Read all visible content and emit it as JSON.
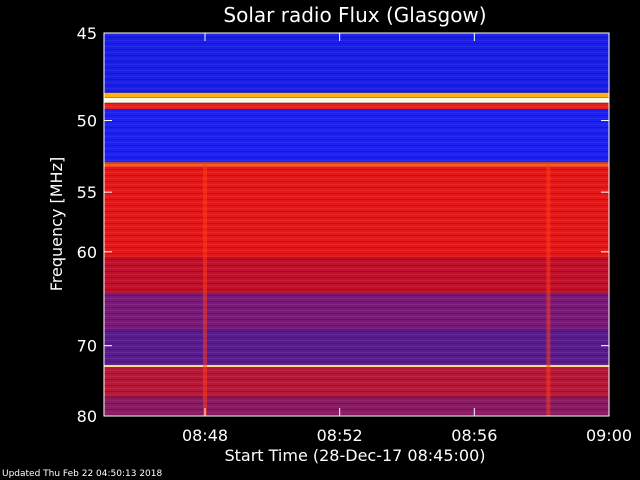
{
  "chart_data": {
    "type": "heatmap",
    "title": "Solar radio Flux (Glasgow)",
    "xlabel": "Start Time (28-Dec-17 08:45:00)",
    "ylabel": "Frequency [MHz]",
    "x_ticks": [
      "08:48",
      "08:52",
      "08:56",
      "09:00"
    ],
    "x_tick_values_min": [
      48,
      52,
      56,
      60
    ],
    "xlim_min": [
      45,
      60
    ],
    "y_ticks": [
      "45",
      "50",
      "55",
      "60",
      "70",
      "80"
    ],
    "y_tick_values": [
      45,
      50,
      55,
      60,
      70,
      80
    ],
    "ylim": [
      45,
      80
    ],
    "y_scale": "reciprocal",
    "frequency_bands": [
      {
        "f0": 45.0,
        "f1": 48.3,
        "color": "#1a1ee6"
      },
      {
        "f0": 48.3,
        "f1": 48.6,
        "color": "#ffb000"
      },
      {
        "f0": 48.6,
        "f1": 48.9,
        "color": "#fffbe8"
      },
      {
        "f0": 48.9,
        "f1": 49.3,
        "color": "#e62020"
      },
      {
        "f0": 49.3,
        "f1": 52.8,
        "color": "#1c20f0"
      },
      {
        "f0": 52.8,
        "f1": 53.1,
        "color": "#ff5a1e"
      },
      {
        "f0": 53.1,
        "f1": 60.5,
        "color": "#e41818"
      },
      {
        "f0": 60.5,
        "f1": 64.0,
        "color": "#c0102a"
      },
      {
        "f0": 64.0,
        "f1": 68.0,
        "color": "#7a1a78"
      },
      {
        "f0": 68.0,
        "f1": 72.5,
        "color": "#5a1c8c"
      },
      {
        "f0": 72.5,
        "f1": 72.8,
        "color": "#ffe08a"
      },
      {
        "f0": 72.8,
        "f1": 77.0,
        "color": "#b81838"
      },
      {
        "f0": 77.0,
        "f1": 80.0,
        "color": "#8a1a62"
      }
    ],
    "bursts": [
      {
        "time_min": 48.0,
        "f0": 53.0,
        "f1": 80.0
      },
      {
        "time_min": 58.2,
        "f0": 53.0,
        "f1": 80.0
      }
    ],
    "colors": {
      "low": "#1a1ee6",
      "mid": "#e41818",
      "high": "#fffbe8"
    }
  },
  "footer": "Updated Thu Feb 22 04:50:13 2018"
}
